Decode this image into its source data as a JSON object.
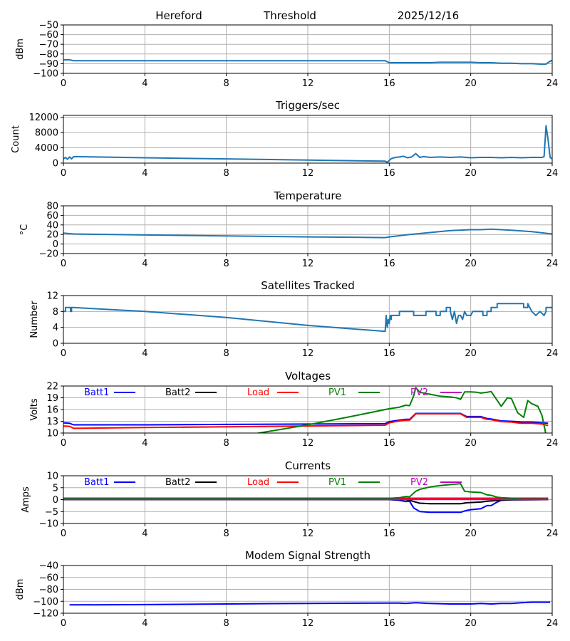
{
  "header": {
    "station": "Hereford",
    "title": "Threshold",
    "date": "2025/12/16"
  },
  "chart_data": [
    {
      "id": "threshold",
      "type": "line",
      "title": "",
      "ylabel": "dBm",
      "xlabel": "",
      "xlim": [
        0,
        24
      ],
      "ylim": [
        -100,
        -50
      ],
      "xticks": [
        0,
        4,
        8,
        12,
        16,
        20,
        24
      ],
      "xtick_labels": [
        "0",
        "4",
        "8",
        "12",
        "16",
        "20",
        "24"
      ],
      "yticks": [
        -50,
        -60,
        -70,
        -80,
        -90,
        -100
      ],
      "ytick_labels": [
        "−50",
        "−60",
        "−70",
        "−80",
        "−90",
        "−100"
      ],
      "grid": true,
      "series": [
        {
          "name": "Threshold",
          "color": "#1f77b4",
          "x": [
            0,
            0.3,
            0.4,
            0.5,
            15.8,
            16.0,
            17,
            18,
            18.5,
            19,
            19.5,
            20,
            20.5,
            21,
            21.5,
            22,
            22.5,
            23,
            23.5,
            23.7,
            23.85,
            24
          ],
          "y": [
            -86,
            -86,
            -86.5,
            -87,
            -87,
            -89,
            -89,
            -89,
            -88.5,
            -88.5,
            -88.5,
            -88.5,
            -89,
            -89,
            -89.5,
            -89.5,
            -90,
            -90,
            -90.5,
            -90.5,
            -88,
            -86.5
          ]
        }
      ]
    },
    {
      "id": "triggers",
      "type": "line",
      "title": "Triggers/sec",
      "ylabel": "Count",
      "xlabel": "",
      "xlim": [
        0,
        24
      ],
      "ylim": [
        0,
        12500
      ],
      "xticks": [
        0,
        4,
        8,
        12,
        16,
        20,
        24
      ],
      "xtick_labels": [
        "0",
        "4",
        "8",
        "12",
        "16",
        "20",
        "24"
      ],
      "yticks": [
        0,
        4000,
        8000,
        12000
      ],
      "ytick_labels": [
        "0",
        "4000",
        "8000",
        "12000"
      ],
      "grid": true,
      "series": [
        {
          "name": "Triggers",
          "color": "#1f77b4",
          "x": [
            0,
            0.1,
            0.2,
            0.3,
            0.4,
            0.5,
            4,
            8,
            12,
            15.8,
            15.9,
            16.1,
            16.3,
            16.5,
            16.7,
            16.9,
            17.1,
            17.3,
            17.5,
            17.7,
            18,
            18.5,
            19,
            19.5,
            20,
            20.5,
            21,
            21.5,
            22,
            22.5,
            23,
            23.5,
            23.6,
            23.7,
            23.8,
            23.9,
            24
          ],
          "y": [
            1100,
            1500,
            1000,
            1600,
            1100,
            1700,
            1400,
            1100,
            800,
            500,
            200,
            1200,
            1500,
            1600,
            1800,
            1400,
            1600,
            2500,
            1500,
            1700,
            1500,
            1600,
            1500,
            1600,
            1400,
            1500,
            1500,
            1400,
            1500,
            1400,
            1500,
            1500,
            1700,
            9800,
            6000,
            1500,
            1100
          ]
        }
      ]
    },
    {
      "id": "temperature",
      "type": "line",
      "title": "Temperature",
      "ylabel": "°C",
      "xlabel": "",
      "xlim": [
        0,
        24
      ],
      "ylim": [
        -20,
        80
      ],
      "xticks": [
        0,
        4,
        8,
        12,
        16,
        20,
        24
      ],
      "xtick_labels": [
        "0",
        "4",
        "8",
        "12",
        "16",
        "20",
        "24"
      ],
      "yticks": [
        80,
        60,
        40,
        20,
        0,
        -20
      ],
      "ytick_labels": [
        "80",
        "60",
        "40",
        "20",
        "0",
        "−20"
      ],
      "grid": true,
      "series": [
        {
          "name": "Temperature",
          "color": "#1f77b4",
          "x": [
            0,
            0.5,
            4,
            8,
            12,
            15.8,
            16.0,
            17,
            18,
            19,
            20,
            20.5,
            21,
            22,
            23,
            24
          ],
          "y": [
            23,
            21,
            19,
            17,
            15,
            13.5,
            15,
            20,
            24,
            28,
            30,
            30,
            31,
            29,
            26,
            21
          ]
        }
      ]
    },
    {
      "id": "satellites",
      "type": "line",
      "title": "Satellites Tracked",
      "ylabel": "Number",
      "xlabel": "",
      "xlim": [
        0,
        24
      ],
      "ylim": [
        0,
        12
      ],
      "xticks": [
        0,
        4,
        8,
        12,
        16,
        20,
        24
      ],
      "xtick_labels": [
        "0",
        "4",
        "8",
        "12",
        "16",
        "20",
        "24"
      ],
      "yticks": [
        0,
        4,
        8,
        12
      ],
      "ytick_labels": [
        "0",
        "4",
        "8",
        "12"
      ],
      "grid": true,
      "series": [
        {
          "name": "Satellites",
          "color": "#1f77b4",
          "x": [
            0,
            0.1,
            0.1,
            0.35,
            0.35,
            0.4,
            0.4,
            0.5,
            4,
            8,
            12,
            15.8,
            15.85,
            15.9,
            15.95,
            16.0,
            16.05,
            16.1,
            16.1,
            16.5,
            16.5,
            17.2,
            17.2,
            17.8,
            17.8,
            18.0,
            18.0,
            18.3,
            18.3,
            18.5,
            18.5,
            18.8,
            18.8,
            19.0,
            19.0,
            19.1,
            19.2,
            19.3,
            19.4,
            19.5,
            19.6,
            19.7,
            19.8,
            20.0,
            20.1,
            20.6,
            20.6,
            20.8,
            20.8,
            21.0,
            21.0,
            21.3,
            21.3,
            22.6,
            22.6,
            22.8,
            22.8,
            23.0,
            23.2,
            23.4,
            23.6,
            23.7,
            23.7,
            24
          ],
          "y": [
            8,
            8,
            9,
            9,
            8,
            8,
            9,
            9,
            8,
            6.5,
            4.5,
            3,
            7,
            4,
            6,
            5,
            7,
            6,
            7,
            7,
            8,
            8,
            7,
            7,
            8,
            8,
            8,
            8,
            7,
            7,
            8,
            8,
            9,
            9,
            8,
            6,
            8,
            5,
            7,
            7,
            6,
            8,
            7,
            7,
            8,
            8,
            7,
            7,
            8,
            8,
            9,
            9,
            10,
            10,
            9,
            9,
            10,
            8,
            7,
            8,
            7,
            8,
            9,
            9
          ]
        }
      ]
    },
    {
      "id": "voltages",
      "type": "line",
      "title": "Voltages",
      "ylabel": "Volts",
      "xlabel": "",
      "xlim": [
        0,
        24
      ],
      "ylim": [
        10,
        22
      ],
      "xticks": [
        0,
        4,
        8,
        12,
        16,
        20,
        24
      ],
      "xtick_labels": [
        "0",
        "4",
        "8",
        "12",
        "16",
        "20",
        "24"
      ],
      "yticks": [
        10,
        13,
        16,
        19,
        22
      ],
      "ytick_labels": [
        "10",
        "13",
        "16",
        "19",
        "22"
      ],
      "grid": true,
      "legend": "top (inline, horizontal)",
      "series": [
        {
          "name": "Batt1",
          "color": "#0000ff",
          "x": [
            0,
            0.3,
            0.5,
            4,
            8,
            12,
            15.8,
            16,
            16.5,
            16.8,
            17.0,
            17.3,
            18,
            19,
            19.5,
            19.8,
            20,
            20.5,
            20.8,
            21,
            21.5,
            22,
            22.3,
            22.5,
            23,
            23.5,
            23.8
          ],
          "y": [
            12.6,
            12.5,
            12.1,
            12.1,
            12.2,
            12.3,
            12.4,
            12.9,
            13.3,
            13.5,
            13.5,
            15.0,
            15.0,
            15.0,
            15.0,
            14.2,
            14.2,
            14.2,
            13.7,
            13.6,
            13.1,
            13.0,
            12.9,
            12.8,
            12.8,
            12.6,
            12.5
          ]
        },
        {
          "name": "Batt2",
          "color": "#000000",
          "x": [],
          "y": []
        },
        {
          "name": "Load",
          "color": "#ff0000",
          "x": [
            0,
            0.3,
            0.5,
            4,
            8,
            12,
            15.8,
            16,
            16.5,
            16.8,
            17.0,
            17.3,
            18,
            19,
            19.5,
            19.8,
            20,
            20.5,
            20.8,
            21,
            21.5,
            22,
            22.3,
            22.5,
            23,
            23.5,
            23.8
          ],
          "y": [
            11.8,
            11.7,
            11.2,
            11.4,
            11.6,
            11.8,
            12.0,
            12.6,
            13.1,
            13.3,
            13.3,
            14.9,
            14.9,
            14.9,
            14.9,
            14.0,
            14.0,
            14.0,
            13.5,
            13.4,
            12.9,
            12.8,
            12.6,
            12.5,
            12.5,
            12.3,
            11.9
          ]
        },
        {
          "name": "PV1",
          "color": "#008000",
          "x": [
            8.8,
            12,
            14,
            16,
            16.5,
            16.8,
            17.0,
            17.2,
            17.3,
            17.5,
            18,
            18.5,
            19,
            19.3,
            19.5,
            19.7,
            20,
            20.3,
            20.5,
            20.8,
            21,
            21.5,
            21.8,
            22,
            22.3,
            22.6,
            22.8,
            23,
            23.3,
            23.5,
            23.7
          ],
          "y": [
            9.3,
            12.1,
            14.1,
            16.2,
            16.6,
            17.1,
            17.0,
            19.5,
            21.6,
            20.4,
            19.9,
            19.4,
            19.2,
            19.0,
            18.6,
            20.5,
            20.5,
            20.4,
            20.2,
            20.4,
            20.6,
            16.8,
            19.0,
            18.8,
            15.2,
            14.0,
            18.3,
            17.5,
            16.8,
            14.5,
            9.5
          ]
        },
        {
          "name": "PV2",
          "color": "#bf00bf",
          "x": [],
          "y": []
        }
      ]
    },
    {
      "id": "currents",
      "type": "line",
      "title": "Currents",
      "ylabel": "Amps",
      "xlabel": "",
      "xlim": [
        0,
        24
      ],
      "ylim": [
        -10,
        10
      ],
      "xticks": [
        0,
        4,
        8,
        12,
        16,
        20,
        24
      ],
      "xtick_labels": [
        "0",
        "4",
        "8",
        "12",
        "16",
        "20",
        "24"
      ],
      "yticks": [
        10,
        5,
        0,
        -5,
        -10
      ],
      "ytick_labels": [
        "10",
        "5",
        "0",
        "−5",
        "−10"
      ],
      "grid": true,
      "legend": "top (inline, horizontal)",
      "series": [
        {
          "name": "Batt1",
          "color": "#0000ff",
          "x": [
            0,
            16,
            16.5,
            16.8,
            17.0,
            17.2,
            17.5,
            18,
            19,
            19.5,
            19.8,
            20,
            20.5,
            20.8,
            21,
            21.3,
            21.5,
            22,
            23.8
          ],
          "y": [
            0,
            0,
            -0.3,
            -0.8,
            -0.7,
            -3.5,
            -5.0,
            -5.3,
            -5.3,
            -5.3,
            -4.5,
            -4.2,
            -3.8,
            -2.5,
            -2.5,
            -1.0,
            -0.3,
            -0.1,
            0
          ]
        },
        {
          "name": "Batt2",
          "color": "#000000",
          "x": [
            0,
            16.8,
            17.0,
            17.2,
            17.5,
            18,
            19,
            19.5,
            19.8,
            20.5,
            20.8,
            21.3,
            21.5,
            22,
            23.8
          ],
          "y": [
            0,
            0,
            -0.3,
            -0.8,
            -1.5,
            -1.7,
            -1.7,
            -1.7,
            -1.3,
            -1.0,
            -0.7,
            -0.4,
            -0.2,
            -0.1,
            0
          ]
        },
        {
          "name": "Load",
          "color": "#ff0000",
          "x": [
            0,
            23.8
          ],
          "y": [
            0.6,
            0.6
          ]
        },
        {
          "name": "PV1",
          "color": "#008000",
          "x": [
            0,
            16,
            16.5,
            16.8,
            17.0,
            17.3,
            17.5,
            18,
            18.5,
            19,
            19.5,
            19.7,
            20,
            20.5,
            20.8,
            21,
            21.3,
            21.5,
            22,
            22.5,
            23.8
          ],
          "y": [
            0.5,
            0.5,
            0.8,
            1.3,
            1.2,
            3.5,
            4.3,
            5.3,
            5.9,
            6.3,
            6.7,
            3.5,
            3.2,
            3.0,
            2.0,
            1.8,
            1.0,
            0.8,
            0.6,
            0.3,
            0.3
          ]
        },
        {
          "name": "PV2",
          "color": "#bf00bf",
          "x": [
            0,
            23.8
          ],
          "y": [
            0.1,
            0.1
          ]
        }
      ]
    },
    {
      "id": "modem",
      "type": "line",
      "title": "Modem Signal Strength",
      "ylabel": "dBm",
      "xlabel": "",
      "xlim": [
        0,
        24
      ],
      "ylim": [
        -120,
        -40
      ],
      "xticks": [
        0,
        4,
        8,
        12,
        16,
        20,
        24
      ],
      "xtick_labels": [
        "0",
        "4",
        "8",
        "12",
        "16",
        "20",
        "24"
      ],
      "yticks": [
        -40,
        -60,
        -80,
        -100,
        -120
      ],
      "ytick_labels": [
        "−40",
        "−60",
        "−80",
        "−100",
        "−120"
      ],
      "grid": true,
      "series": [
        {
          "name": "Modem",
          "color": "#0000ff",
          "x": [
            0.3,
            4,
            8,
            12,
            16,
            16.5,
            16.8,
            17.3,
            18,
            18.5,
            19,
            19.5,
            20,
            20.5,
            21,
            21.5,
            22,
            22.5,
            23,
            23.5,
            23.9
          ],
          "y": [
            -106,
            -105.5,
            -104.5,
            -103.5,
            -103,
            -103,
            -103.5,
            -102.5,
            -103.5,
            -104,
            -104.5,
            -104.5,
            -104.5,
            -103.5,
            -104.5,
            -103.5,
            -103.5,
            -102.5,
            -101.5,
            -101.5,
            -101.5
          ]
        }
      ]
    }
  ]
}
